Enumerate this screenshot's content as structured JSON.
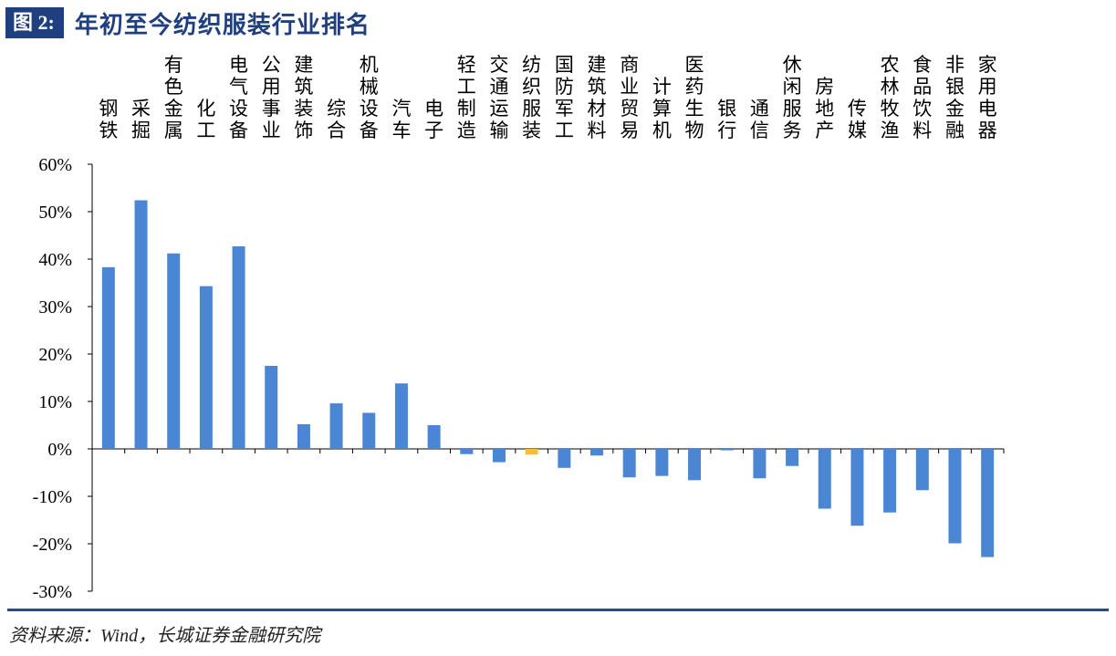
{
  "header": {
    "figure_label": "图 2:",
    "title": "年初至今纺织服装行业排名"
  },
  "footer": {
    "source": "资料来源：Wind，长城证券金融研究院"
  },
  "colors": {
    "bar": "#4a86d4",
    "highlight": "#f2c030",
    "axis": "#000000",
    "title": "#1f3f7f"
  },
  "chart_data": {
    "type": "bar",
    "title": "年初至今纺织服装行业排名",
    "xlabel": "",
    "ylabel": "",
    "ylim": [
      -0.3,
      0.6
    ],
    "yticks": [
      0.6,
      0.5,
      0.4,
      0.3,
      0.2,
      0.1,
      0.0,
      -0.1,
      -0.2,
      -0.3
    ],
    "ytick_labels": [
      "60%",
      "50%",
      "40%",
      "30%",
      "20%",
      "10%",
      "0%",
      "-10%",
      "-20%",
      "-30%"
    ],
    "grid": false,
    "legend": "none",
    "highlight_category": "纺织服装",
    "categories": [
      "钢铁",
      "采掘",
      "有色金属",
      "化工",
      "电气设备",
      "公用事业",
      "建筑装饰",
      "综合",
      "机械设备",
      "汽车",
      "电子",
      "轻工制造",
      "交通运输",
      "纺织服装",
      "国防军工",
      "建筑材料",
      "商业贸易",
      "计算机",
      "医药生物",
      "银行",
      "通信",
      "休闲服务",
      "房地产",
      "传媒",
      "农林牧渔",
      "食品饮料",
      "非银金融",
      "家用电器"
    ],
    "values": [
      0.383,
      0.524,
      0.412,
      0.343,
      0.427,
      0.175,
      0.052,
      0.096,
      0.076,
      0.138,
      0.05,
      -0.011,
      -0.028,
      -0.012,
      -0.04,
      -0.014,
      -0.06,
      -0.057,
      -0.066,
      -0.003,
      -0.062,
      -0.036,
      -0.126,
      -0.162,
      -0.134,
      -0.087,
      -0.199,
      -0.228
    ]
  }
}
